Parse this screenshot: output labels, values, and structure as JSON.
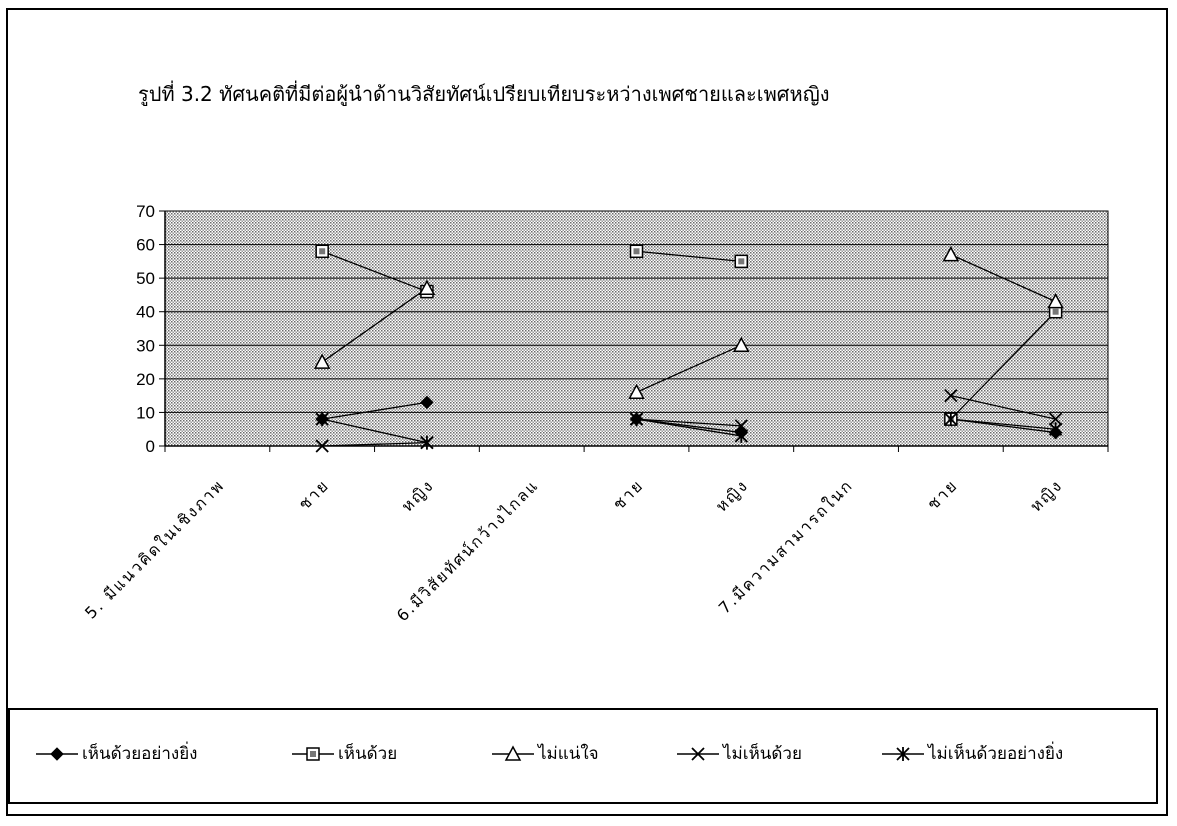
{
  "chart_data": {
    "type": "line",
    "title": "รูปที่ 3.2 ทัศนคติที่มีต่อผู้นำด้านวิสัยทัศน์เปรียบเทียบระหว่างเพศชายและเพศหญิง",
    "categories": [
      "5. มีแนวคิดในเชิงภาพ",
      "ชาย",
      "หญิง",
      "6.มีวิสัยทัศน์กว้างไกลแ",
      "ชาย",
      "หญิง",
      "7.มีความสามารถในก",
      "ชาย",
      "หญิง"
    ],
    "series": [
      {
        "name": "เห็นด้วยอย่างยิ่ง",
        "marker": "diamond",
        "values": [
          null,
          8,
          13,
          null,
          8,
          4,
          null,
          8,
          4
        ]
      },
      {
        "name": "เห็นด้วย",
        "marker": "square",
        "values": [
          null,
          58,
          46,
          null,
          58,
          55,
          null,
          8,
          40
        ]
      },
      {
        "name": "ไม่แน่ใจ",
        "marker": "triangle",
        "values": [
          null,
          25,
          47,
          null,
          16,
          30,
          null,
          57,
          43
        ]
      },
      {
        "name": "ไม่เห็นด้วย",
        "marker": "x",
        "values": [
          null,
          0,
          1,
          null,
          8,
          6,
          null,
          15,
          8
        ]
      },
      {
        "name": "ไม่เห็นด้วยอย่างยิ่ง",
        "marker": "asterisk",
        "values": [
          null,
          8,
          1,
          null,
          8,
          3,
          null,
          8,
          5
        ]
      }
    ],
    "ylim": [
      0,
      70
    ],
    "yticks": [
      "0",
      "10",
      "20",
      "30",
      "40",
      "50",
      "60",
      "70"
    ],
    "grid": true,
    "legend_position": "bottom",
    "colors": {
      "line": "#000000",
      "plot_background": "#d4d4d4"
    }
  }
}
